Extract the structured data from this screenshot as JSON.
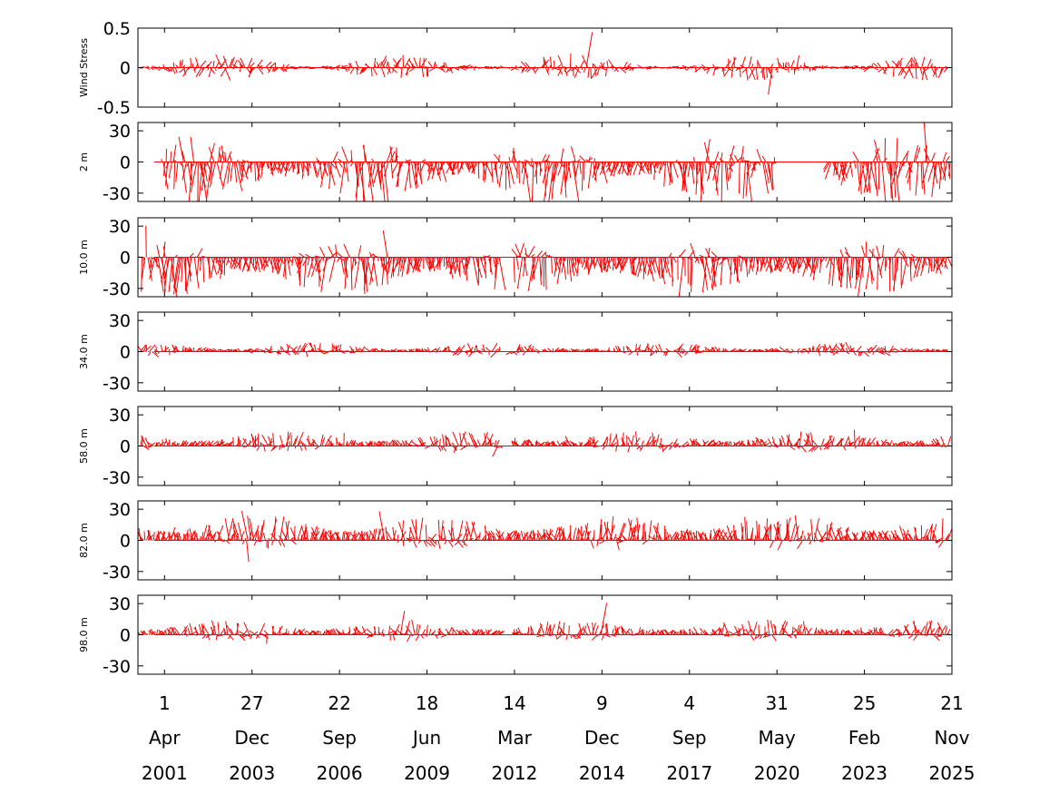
{
  "chart_data": {
    "type": "line",
    "style": "stick-plot",
    "series_color": "#ff0000",
    "x_range": [
      "2000-06-01",
      "2025-11-21"
    ],
    "x_ticks": [
      {
        "date": "2001-04-01",
        "day": "1",
        "month": "Apr",
        "year": "2001"
      },
      {
        "date": "2003-12-27",
        "day": "27",
        "month": "Dec",
        "year": "2003"
      },
      {
        "date": "2006-09-22",
        "day": "22",
        "month": "Sep",
        "year": "2006"
      },
      {
        "date": "2009-06-18",
        "day": "18",
        "month": "Jun",
        "year": "2009"
      },
      {
        "date": "2012-03-14",
        "day": "14",
        "month": "Mar",
        "year": "2012"
      },
      {
        "date": "2014-12-09",
        "day": "9",
        "month": "Dec",
        "year": "2014"
      },
      {
        "date": "2017-09-04",
        "day": "4",
        "month": "Sep",
        "year": "2017"
      },
      {
        "date": "2020-05-31",
        "day": "31",
        "month": "May",
        "year": "2020"
      },
      {
        "date": "2023-02-25",
        "day": "25",
        "month": "Feb",
        "year": "2023"
      },
      {
        "date": "2025-11-21",
        "day": "21",
        "month": "Nov",
        "year": "2025"
      }
    ],
    "panels": [
      {
        "ylabel": "Wind Stress",
        "ylim": [
          -0.5,
          0.5
        ],
        "yticks": [
          "0.5",
          "0",
          "-0.5"
        ],
        "yticks_values": [
          0.5,
          0,
          -0.5
        ],
        "data_start": "2000-07-01",
        "data_end": "2025-10-20",
        "gaps": [],
        "amplitude": 0.15,
        "bias": 0.0
      },
      {
        "ylabel": "2 m",
        "ylim": [
          -38,
          38
        ],
        "yticks": [
          "30",
          "0",
          "-30"
        ],
        "yticks_values": [
          30,
          0,
          -30
        ],
        "data_start": "2001-03-01",
        "data_end": "2025-11-21",
        "gaps": [
          [
            "2020-06-01",
            "2022-01-01"
          ]
        ],
        "amplitude": 32,
        "bias": -10
      },
      {
        "ylabel": "10.0 m",
        "ylim": [
          -38,
          38
        ],
        "yticks": [
          "30",
          "0",
          "-30"
        ],
        "yticks_values": [
          30,
          0,
          -30
        ],
        "data_start": "2000-07-01",
        "data_end": "2025-10-20",
        "gaps": [
          [
            "2011-10-01",
            "2012-03-01"
          ]
        ],
        "amplitude": 25,
        "bias": -12
      },
      {
        "ylabel": "34.0 m",
        "ylim": [
          -38,
          38
        ],
        "yticks": [
          "30",
          "0",
          "-30"
        ],
        "yticks_values": [
          30,
          0,
          -30
        ],
        "data_start": "2000-07-01",
        "data_end": "2025-10-20",
        "gaps": [
          [
            "2011-10-01",
            "2012-02-01"
          ]
        ],
        "amplitude": 7,
        "bias": 2
      },
      {
        "ylabel": "58.0 m",
        "ylim": [
          -38,
          38
        ],
        "yticks": [
          "30",
          "0",
          "-30"
        ],
        "yticks_values": [
          30,
          0,
          -30
        ],
        "data_start": "2000-07-01",
        "data_end": "2025-10-20",
        "gaps": [
          [
            "2011-10-01",
            "2012-02-01"
          ]
        ],
        "amplitude": 10,
        "bias": 4
      },
      {
        "ylabel": "82.0 m",
        "ylim": [
          -38,
          38
        ],
        "yticks": [
          "30",
          "0",
          "-30"
        ],
        "yticks_values": [
          30,
          0,
          -30
        ],
        "data_start": "2000-07-01",
        "data_end": "2025-10-20",
        "gaps": [],
        "amplitude": 16,
        "bias": 8
      },
      {
        "ylabel": "98.0 m",
        "ylim": [
          -38,
          38
        ],
        "yticks": [
          "30",
          "0",
          "-30"
        ],
        "yticks_values": [
          30,
          0,
          -30
        ],
        "data_start": "2000-07-01",
        "data_end": "2025-10-20",
        "gaps": [
          [
            "2011-10-01",
            "2012-02-01"
          ]
        ],
        "amplitude": 10,
        "bias": 4
      }
    ]
  }
}
